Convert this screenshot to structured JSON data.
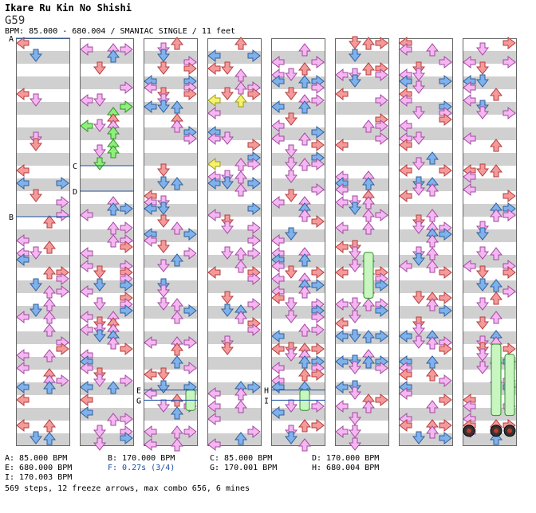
{
  "header": {
    "title": "Ikare Ru Kin No Shishi",
    "difficulty": "G59",
    "bpm_info": "BPM: 85.000 - 680.004 / SMANIAC SINGLE / 11 feet"
  },
  "markers": [
    {
      "label": "A",
      "column": 0,
      "measure": 0
    },
    {
      "label": "B",
      "column": 0,
      "measure": 3.5
    },
    {
      "label": "C",
      "column": 1,
      "measure": 2.5
    },
    {
      "label": "D",
      "column": 1,
      "measure": 3
    },
    {
      "label": "E",
      "column": 2,
      "measure": 6.9
    },
    {
      "label": "G",
      "column": 2,
      "measure": 7.1
    },
    {
      "label": "H",
      "column": 4,
      "measure": 6.9
    },
    {
      "label": "I",
      "column": 4,
      "measure": 7.1
    }
  ],
  "legend": [
    {
      "text": "A: 85.000 BPM",
      "color": "#333333"
    },
    {
      "text": "B: 170.000 BPM",
      "color": "#333333"
    },
    {
      "text": "C: 85.000 BPM",
      "color": "#333333"
    },
    {
      "text": "D: 170.000 BPM",
      "color": "#333333"
    },
    {
      "text": "E: 680.000 BPM",
      "color": "#333333"
    },
    {
      "text": "F: 0.27s (3/4)",
      "color": "#1a4fa0"
    },
    {
      "text": "G: 170.001 BPM",
      "color": "#333333"
    },
    {
      "text": "H: 680.004 BPM",
      "color": "#333333"
    },
    {
      "text": "I: 170.003 BPM",
      "color": "#333333"
    }
  ],
  "summary": "569 steps, 12 freeze arrows, max combo 656, 6 mines",
  "colors": {
    "red": "#f59a9a",
    "red_stroke": "#b43c3c",
    "blue": "#7fb2ec",
    "blue_stroke": "#2f5f9c",
    "pink": "#f5b6f2",
    "pink_stroke": "#a04a9e",
    "green": "#8ef07a",
    "green_stroke": "#2f8f2a",
    "yellow": "#f6f26a",
    "yellow_stroke": "#9b9a20",
    "stripe": "#d0d0d0",
    "marker": "#1a4fa0"
  }
}
